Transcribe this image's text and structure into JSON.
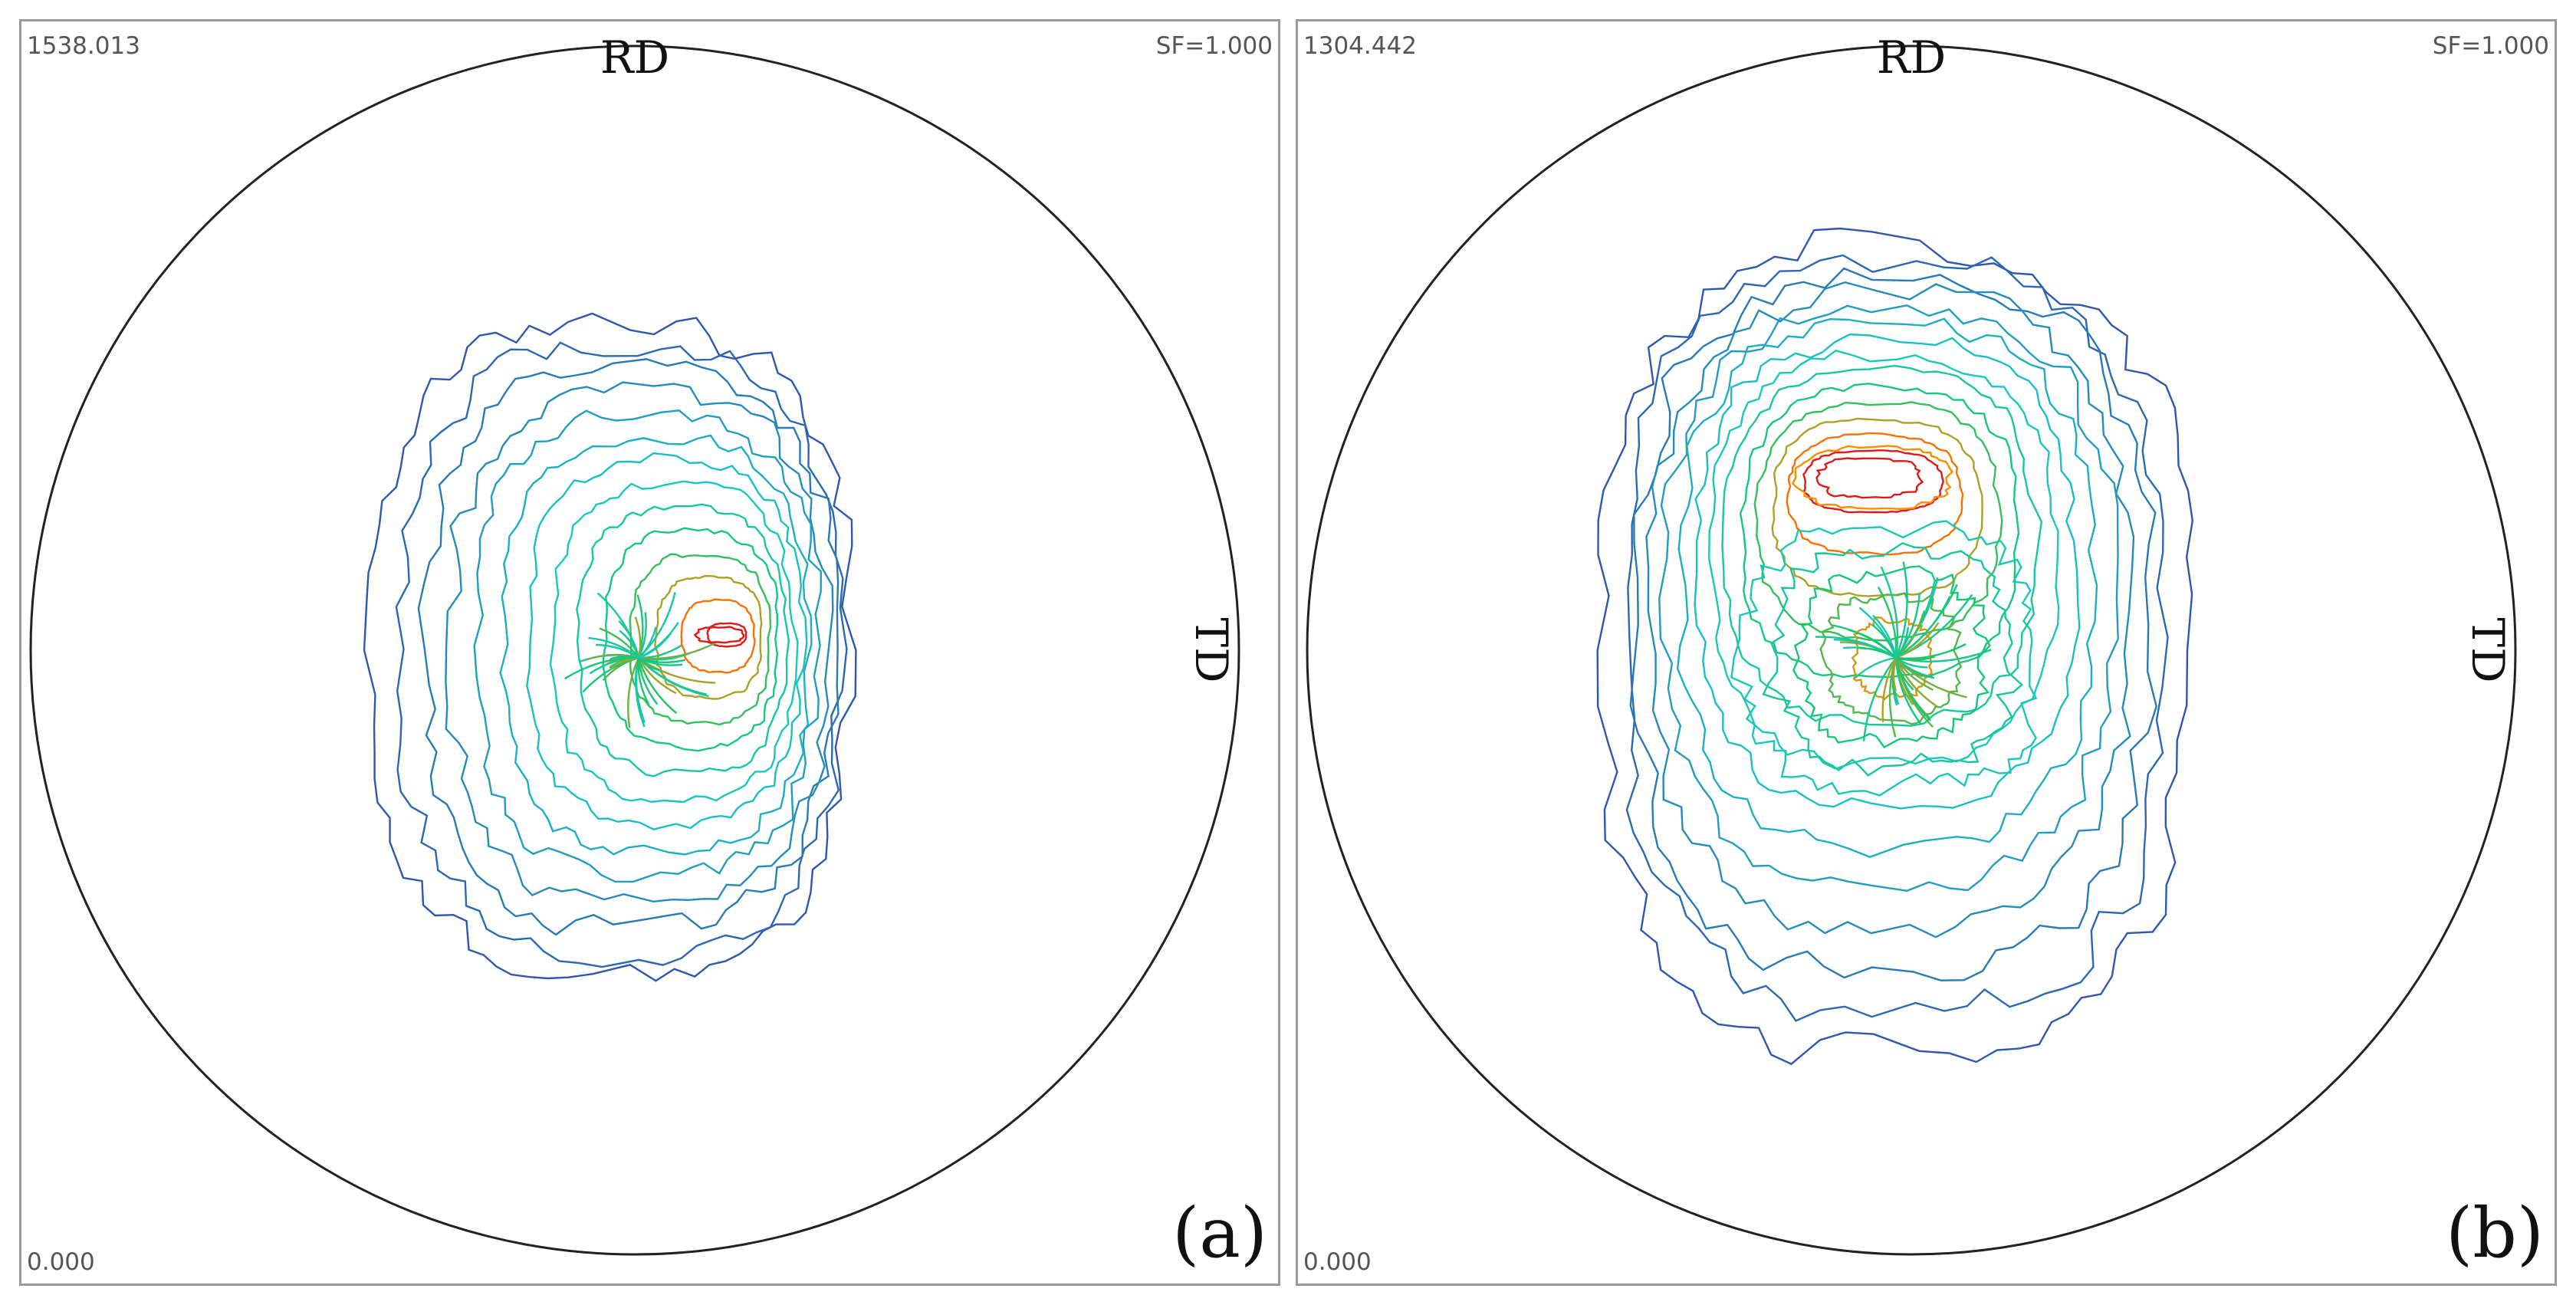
{
  "panels": [
    {
      "id": "a",
      "max_value": "1538.013",
      "scale_factor": "SF=1.000",
      "min_value": "0.000",
      "top_axis": "RD",
      "right_axis": "TD",
      "letter": "(a)",
      "peak_description": "single central maximum",
      "contour_levels": 14
    },
    {
      "id": "b",
      "max_value": "1304.442",
      "scale_factor": "SF=1.000",
      "min_value": "0.000",
      "top_axis": "RD",
      "right_axis": "TD",
      "letter": "(b)",
      "peak_description": "upper maximum plus central pole",
      "contour_levels": 14
    }
  ],
  "colors": {
    "frame": "#9a9a9a",
    "circle": "#222222",
    "contour_low": "#2f57b0",
    "contour_mid": "#16c76b",
    "contour_high": "#ff8c00",
    "contour_peak": "#e01818"
  }
}
